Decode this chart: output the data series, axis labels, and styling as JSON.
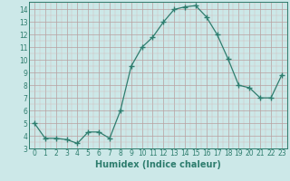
{
  "x": [
    0,
    1,
    2,
    3,
    4,
    5,
    6,
    7,
    8,
    9,
    10,
    11,
    12,
    13,
    14,
    15,
    16,
    17,
    18,
    19,
    20,
    21,
    22,
    23
  ],
  "y": [
    5.0,
    3.8,
    3.8,
    3.7,
    3.4,
    4.3,
    4.3,
    3.8,
    6.0,
    9.5,
    11.0,
    11.8,
    13.0,
    14.0,
    14.2,
    14.3,
    13.4,
    12.0,
    10.1,
    8.0,
    7.8,
    7.0,
    7.0,
    8.8
  ],
  "line_color": "#2e7d6e",
  "marker": "+",
  "marker_size": 4,
  "bg_color": "#cce8e8",
  "grid_major_color": "#b8a0a0",
  "grid_minor_color": "#d4bcbc",
  "xlabel": "Humidex (Indice chaleur)",
  "xlim": [
    -0.5,
    23.5
  ],
  "ylim": [
    3,
    14.6
  ],
  "yticks": [
    3,
    4,
    5,
    6,
    7,
    8,
    9,
    10,
    11,
    12,
    13,
    14
  ],
  "xticks": [
    0,
    1,
    2,
    3,
    4,
    5,
    6,
    7,
    8,
    9,
    10,
    11,
    12,
    13,
    14,
    15,
    16,
    17,
    18,
    19,
    20,
    21,
    22,
    23
  ],
  "tick_color": "#2e7d6e",
  "label_fontsize": 7,
  "tick_fontsize": 5.5
}
